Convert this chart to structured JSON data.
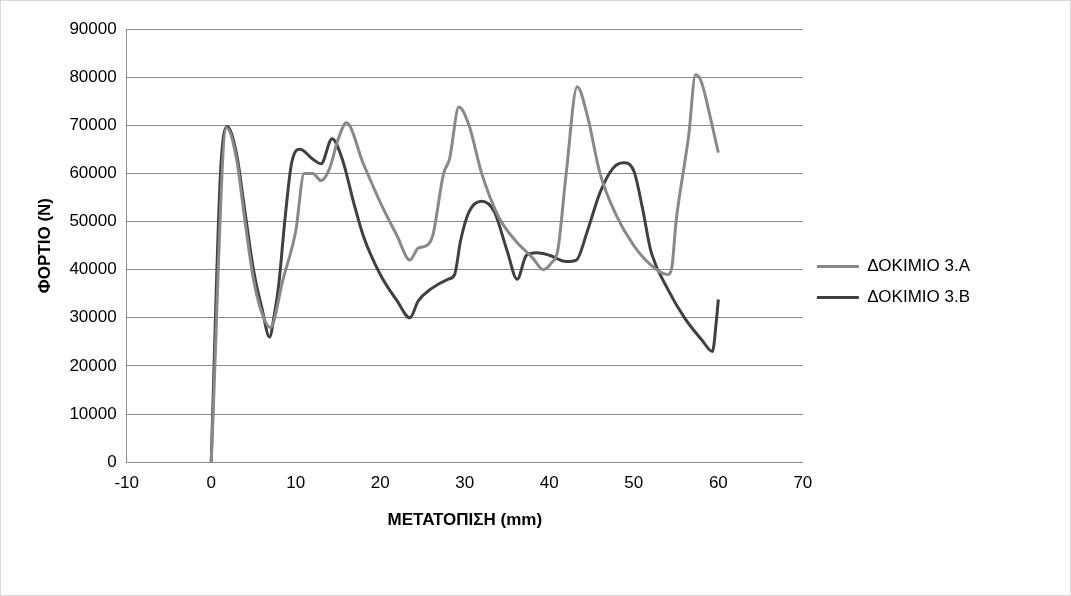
{
  "chart_data": {
    "type": "line",
    "xlabel": "ΜΕΤΑΤΟΠΙΣΗ (mm)",
    "ylabel": "ΦΟΡΤΙΟ (N)",
    "xlim": [
      -10,
      70
    ],
    "xticks": [
      -10,
      0,
      10,
      20,
      30,
      40,
      50,
      60,
      70
    ],
    "ylim": [
      0,
      90000
    ],
    "yticks": [
      0,
      10000,
      20000,
      30000,
      40000,
      50000,
      60000,
      70000,
      80000,
      90000
    ],
    "grid": "y",
    "legend": "right",
    "marker": "none",
    "line_style": "solid",
    "series": [
      {
        "name": "ΔΟΚΙΜΙΟ 3.Α",
        "color": "#898989",
        "x": [
          0,
          1.8,
          3,
          4,
          5,
          6,
          7,
          8.5,
          10,
          11,
          12,
          13,
          14,
          15,
          16,
          18,
          20,
          22,
          23.5,
          24.5,
          25.5,
          26.2,
          27.5,
          28.2,
          29.3,
          30.5,
          32,
          34,
          36,
          38,
          39.3,
          40.3,
          41,
          42,
          43.3,
          44.5,
          46,
          48,
          50,
          52,
          54,
          54.5,
          55,
          56,
          56.5,
          57.3,
          58,
          59,
          60
        ],
        "values": [
          0,
          69500,
          63000,
          50000,
          38000,
          31000,
          28000,
          38000,
          48000,
          60000,
          60000,
          58500,
          61000,
          67000,
          70500,
          62000,
          54000,
          47000,
          42000,
          44500,
          45000,
          47000,
          60000,
          63000,
          73800,
          70000,
          60000,
          51000,
          46000,
          42500,
          40000,
          41500,
          44000,
          60000,
          78000,
          72000,
          60000,
          51000,
          45000,
          41000,
          39000,
          40500,
          50000,
          62000,
          68000,
          80500,
          79000,
          72000,
          64300
        ]
      },
      {
        "name": "ΔΟΚΙΜΙΟ 3.Β",
        "color": "#404040",
        "x": [
          0,
          1.1,
          1.9,
          3,
          4,
          5,
          6,
          6.9,
          7.5,
          8,
          8.7,
          9.5,
          10.5,
          12,
          13,
          14.3,
          15.5,
          17,
          18,
          20,
          22,
          23.5,
          24.5,
          26,
          28,
          28.8,
          29.5,
          30.5,
          32,
          33.5,
          35,
          36.2,
          37.3,
          38.5,
          40,
          42,
          43.2,
          44.5,
          46,
          47.5,
          48.8,
          50,
          51,
          52,
          54,
          56,
          58,
          59.3,
          59.8,
          60
        ],
        "values": [
          0,
          60000,
          69700,
          64000,
          52000,
          40000,
          32000,
          26000,
          31000,
          37000,
          50000,
          62000,
          65000,
          63000,
          62000,
          67200,
          63000,
          53000,
          47000,
          39000,
          33500,
          30000,
          33500,
          36000,
          38000,
          39000,
          46000,
          52000,
          54200,
          52000,
          44000,
          38000,
          43000,
          43500,
          43000,
          41700,
          42000,
          48000,
          56000,
          61000,
          62200,
          60500,
          53000,
          44000,
          36000,
          30000,
          25500,
          23000,
          30000,
          33800
        ]
      }
    ]
  }
}
